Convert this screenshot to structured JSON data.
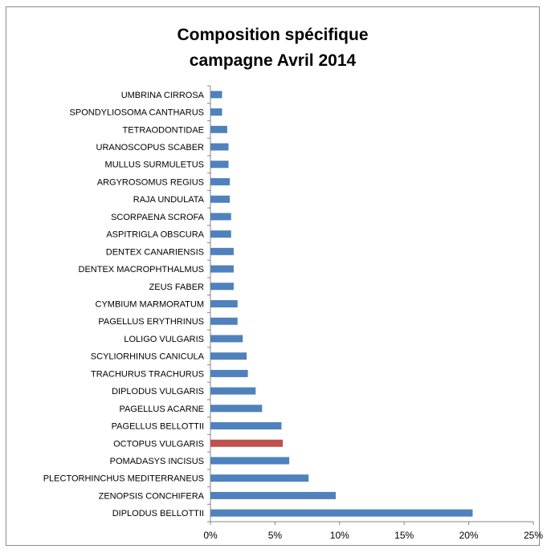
{
  "chart_data": {
    "type": "bar",
    "orientation": "horizontal",
    "title_lines": [
      "Composition spécifique",
      "campagne Avril 2014"
    ],
    "categories": [
      "UMBRINA CIRROSA",
      "SPONDYLIOSOMA CANTHARUS",
      "TETRAODONTIDAE",
      "URANOSCOPUS SCABER",
      "MULLUS SURMULETUS",
      "ARGYROSOMUS REGIUS",
      "RAJA UNDULATA",
      "SCORPAENA SCROFA",
      "ASPITRIGLA OBSCURA",
      "DENTEX CANARIENSIS",
      "DENTEX MACROPHTHALMUS",
      "ZEUS FABER",
      "CYMBIUM MARMORATUM",
      "PAGELLUS ERYTHRINUS",
      "LOLIGO VULGARIS",
      "SCYLIORHINUS CANICULA",
      "TRACHURUS TRACHURUS",
      "DIPLODUS VULGARIS",
      "PAGELLUS ACARNE",
      "PAGELLUS BELLOTTII",
      "OCTOPUS VULGARIS",
      "POMADASYS INCISUS",
      "PLECTORHINCHUS MEDITERRANEUS",
      "ZENOPSIS CONCHIFERA",
      "DIPLODUS BELLOTTII"
    ],
    "values": [
      0.9,
      0.9,
      1.3,
      1.4,
      1.4,
      1.5,
      1.5,
      1.6,
      1.6,
      1.8,
      1.8,
      1.8,
      2.1,
      2.1,
      2.5,
      2.8,
      2.9,
      3.5,
      4.0,
      5.5,
      5.6,
      6.1,
      7.6,
      9.7,
      20.3
    ],
    "highlight_category": "OCTOPUS VULGARIS",
    "xlim": [
      0,
      25
    ],
    "xticks": [
      "0%",
      "5%",
      "10%",
      "15%",
      "20%",
      "25%"
    ],
    "xtick_values": [
      0,
      5,
      10,
      15,
      20,
      25
    ],
    "xlabel": "",
    "ylabel": "",
    "grid": false,
    "legend": "none",
    "colors": {
      "bar": "#4f81bd",
      "highlight": "#c0504d",
      "axis": "#868686"
    }
  }
}
